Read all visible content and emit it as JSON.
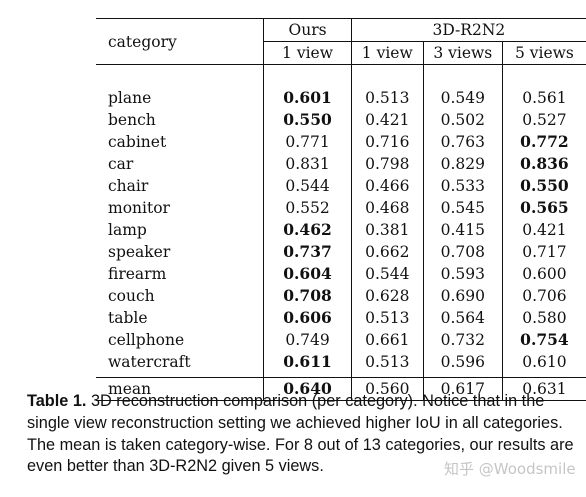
{
  "table": {
    "header": {
      "category": "category",
      "ours": "Ours",
      "baseline": "3D-R2N2",
      "ours_views": "1 view",
      "baseline_views": [
        "1 view",
        "3 views",
        "5 views"
      ]
    },
    "rows": [
      {
        "category": "plane",
        "values": [
          "0.601",
          "0.513",
          "0.549",
          "0.561"
        ],
        "bold": 0
      },
      {
        "category": "bench",
        "values": [
          "0.550",
          "0.421",
          "0.502",
          "0.527"
        ],
        "bold": 0
      },
      {
        "category": "cabinet",
        "values": [
          "0.771",
          "0.716",
          "0.763",
          "0.772"
        ],
        "bold": 3
      },
      {
        "category": "car",
        "values": [
          "0.831",
          "0.798",
          "0.829",
          "0.836"
        ],
        "bold": 3
      },
      {
        "category": "chair",
        "values": [
          "0.544",
          "0.466",
          "0.533",
          "0.550"
        ],
        "bold": 3
      },
      {
        "category": "monitor",
        "values": [
          "0.552",
          "0.468",
          "0.545",
          "0.565"
        ],
        "bold": 3
      },
      {
        "category": "lamp",
        "values": [
          "0.462",
          "0.381",
          "0.415",
          "0.421"
        ],
        "bold": 0
      },
      {
        "category": "speaker",
        "values": [
          "0.737",
          "0.662",
          "0.708",
          "0.717"
        ],
        "bold": 0
      },
      {
        "category": "firearm",
        "values": [
          "0.604",
          "0.544",
          "0.593",
          "0.600"
        ],
        "bold": 0
      },
      {
        "category": "couch",
        "values": [
          "0.708",
          "0.628",
          "0.690",
          "0.706"
        ],
        "bold": 0
      },
      {
        "category": "table",
        "values": [
          "0.606",
          "0.513",
          "0.564",
          "0.580"
        ],
        "bold": 0
      },
      {
        "category": "cellphone",
        "values": [
          "0.749",
          "0.661",
          "0.732",
          "0.754"
        ],
        "bold": 3
      },
      {
        "category": "watercraft",
        "values": [
          "0.611",
          "0.513",
          "0.596",
          "0.610"
        ],
        "bold": 0
      }
    ],
    "mean": {
      "category": "mean",
      "values": [
        "0.640",
        "0.560",
        "0.617",
        "0.631"
      ],
      "bold": 0
    }
  },
  "caption": {
    "label": "Table 1.",
    "text": " 3D reconstruction comparison (per category). Notice that in the single view reconstruction setting we achieved higher IoU in all categories. The mean is taken category-wise. For 8 out of 13 categories, our results are even better than 3D-R2N2 given 5 views."
  },
  "watermark": "知乎 @Woodsmile"
}
